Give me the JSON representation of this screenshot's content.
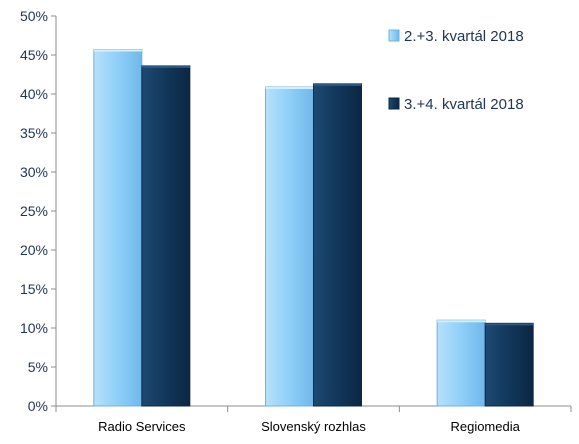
{
  "chart_data": {
    "type": "bar",
    "categories": [
      "Radio Services",
      "Slovenský rozhlas",
      "Regiomedia"
    ],
    "series": [
      {
        "name": "2.+3. kvartál 2018",
        "values": [
          45.7,
          40.9,
          11.0
        ],
        "color": "#8fcff8"
      },
      {
        "name": "3.+4. kvartál 2018",
        "values": [
          43.6,
          41.3,
          10.6
        ],
        "color": "#12375a"
      }
    ],
    "ylim": [
      0,
      50
    ],
    "yticks": [
      "0%",
      "5%",
      "10%",
      "15%",
      "20%",
      "25%",
      "30%",
      "35%",
      "40%",
      "45%",
      "50%"
    ],
    "grid": false,
    "legend_position": "top-right"
  }
}
